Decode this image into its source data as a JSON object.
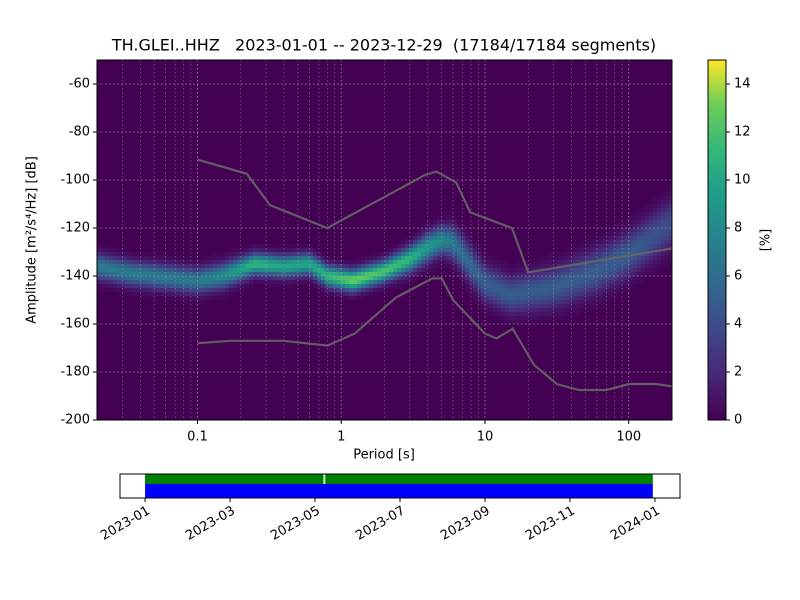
{
  "chart_data": {
    "type": "ppsd",
    "title": "TH.GLEI..HHZ   2023-01-01 -- 2023-12-29  (17184/17184 segments)",
    "xlabel": "Period [s]",
    "ylabel": "Amplitude [m²/s⁴/Hz] [dB]",
    "xscale": "log",
    "xlim": [
      0.02,
      200
    ],
    "ylim": [
      -200,
      -50
    ],
    "xticks": [
      0.1,
      1,
      10,
      100
    ],
    "yticks": [
      -60,
      -80,
      -100,
      -120,
      -140,
      -160,
      -180,
      -200
    ],
    "grid": true,
    "colormap": "viridis",
    "density": {
      "period": [
        0.02,
        0.035,
        0.05,
        0.1,
        0.15,
        0.25,
        0.4,
        0.6,
        0.8,
        1.2,
        2,
        3,
        4,
        5,
        6,
        7,
        10,
        15,
        30,
        60,
        100,
        200
      ],
      "mode_db": [
        -136,
        -139,
        -140,
        -142,
        -140,
        -135,
        -136,
        -135,
        -140,
        -142,
        -138,
        -133,
        -128,
        -125,
        -126,
        -131,
        -143,
        -148,
        -145,
        -138,
        -131,
        -118
      ],
      "spread_db": [
        3.5,
        3.5,
        3.5,
        3.5,
        3.5,
        3,
        3,
        3,
        3,
        3,
        3,
        3.5,
        4,
        4,
        4.5,
        5,
        5,
        5,
        5.5,
        6,
        6,
        6.5
      ],
      "peak_percent": [
        7,
        7,
        7,
        7,
        8,
        11,
        10,
        10,
        11,
        13,
        12,
        11,
        9,
        8,
        7,
        6,
        5,
        5,
        5,
        5,
        5,
        4
      ]
    },
    "series": [
      {
        "color": "#666666",
        "x": [
          0.1,
          0.22,
          0.32,
          0.8,
          3.8,
          4.6,
          6.3,
          7.9,
          15.4,
          20,
          200
        ],
        "values": [
          -91.5,
          -97.4,
          -110.5,
          -120,
          -98,
          -96.5,
          -101,
          -113.5,
          -120,
          -138.5,
          -128.5
        ]
      },
      {
        "color": "#666666",
        "x": [
          0.1,
          0.17,
          0.4,
          0.8,
          1.24,
          2.4,
          4.3,
          5,
          6,
          10,
          12,
          15.6,
          21.9,
          31.6,
          45,
          70,
          101,
          154,
          200
        ],
        "values": [
          -168,
          -167,
          -167,
          -169,
          -164,
          -149,
          -141,
          -141,
          -150,
          -164,
          -166,
          -162,
          -177,
          -185,
          -187.5,
          -187.5,
          -185,
          -185,
          -186
        ]
      }
    ],
    "colorbar": {
      "label": "[%]",
      "lim": [
        0,
        15
      ],
      "ticks": [
        0,
        2,
        4,
        6,
        8,
        10,
        12,
        14
      ]
    },
    "timeline": {
      "xlim": [
        -0.59,
        12.59
      ],
      "xticks": [
        {
          "value": 0,
          "label": "2023-01"
        },
        {
          "value": 2,
          "label": "2023-03"
        },
        {
          "value": 4,
          "label": "2023-05"
        },
        {
          "value": 6,
          "label": "2023-07"
        },
        {
          "value": 8,
          "label": "2023-09"
        },
        {
          "value": 10,
          "label": "2023-11"
        },
        {
          "value": 12,
          "label": "2024-01"
        }
      ],
      "tracks": [
        {
          "color": "#008000",
          "segments": [
            [
              0,
              4.2
            ],
            [
              4.24,
              11.95
            ]
          ]
        },
        {
          "color": "#0000ff",
          "segments": [
            [
              0,
              11.95
            ]
          ]
        }
      ]
    }
  }
}
